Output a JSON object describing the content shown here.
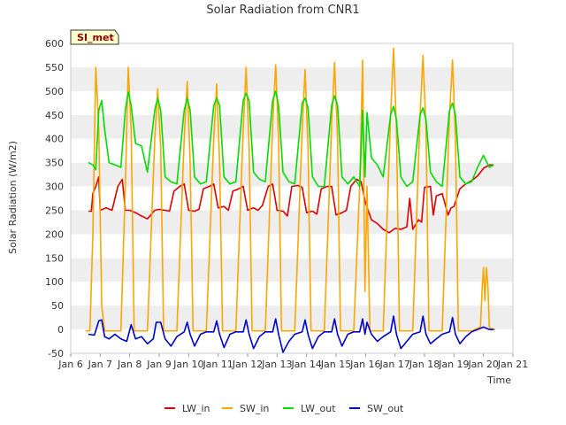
{
  "chart_data": {
    "type": "line",
    "title": "Solar Radiation from CNR1",
    "xlabel": "Time",
    "ylabel": "Solar Radiation (W/m2)",
    "station_badge": "SI_met",
    "xlim": [
      6,
      21
    ],
    "ylim": [
      -50,
      600
    ],
    "x_ticks": [
      6,
      7,
      8,
      9,
      10,
      11,
      12,
      13,
      14,
      15,
      16,
      17,
      18,
      19,
      20,
      21
    ],
    "x_tick_labels": [
      "Jan 6",
      "Jan 7",
      "Jan 8",
      "Jan 9",
      "Jan 10",
      "Jan 11",
      "Jan 12",
      "Jan 13",
      "Jan 14",
      "Jan 15",
      "Jan 16",
      "Jan 17",
      "Jan 18",
      "Jan 19",
      "Jan 20",
      "Jan 21"
    ],
    "y_ticks": [
      -50,
      0,
      50,
      100,
      150,
      200,
      250,
      300,
      350,
      400,
      450,
      500,
      550,
      600
    ],
    "grid": "horizontal bands",
    "legend_position": "bottom",
    "series": [
      {
        "name": "LW_in",
        "color": "#dd0000",
        "x": [
          6.6,
          6.7,
          6.75,
          6.85,
          6.95,
          7.0,
          7.2,
          7.4,
          7.6,
          7.75,
          7.85,
          8.0,
          8.2,
          8.4,
          8.6,
          8.85,
          9.0,
          9.2,
          9.35,
          9.5,
          9.7,
          9.85,
          10.0,
          10.2,
          10.35,
          10.5,
          10.7,
          10.85,
          11.0,
          11.2,
          11.35,
          11.5,
          11.7,
          11.85,
          12.0,
          12.2,
          12.35,
          12.5,
          12.7,
          12.85,
          13.0,
          13.2,
          13.35,
          13.5,
          13.7,
          13.85,
          14.0,
          14.2,
          14.35,
          14.5,
          14.7,
          14.85,
          15.0,
          15.2,
          15.35,
          15.5,
          15.7,
          15.85,
          16.0,
          16.2,
          16.4,
          16.6,
          16.8,
          17.0,
          17.2,
          17.4,
          17.5,
          17.6,
          17.8,
          17.9,
          18.0,
          18.2,
          18.3,
          18.4,
          18.6,
          18.8,
          18.9,
          19.0,
          19.2,
          19.4,
          19.6,
          19.8,
          20.0,
          20.2,
          20.35
        ],
        "y": [
          248,
          248,
          285,
          300,
          320,
          250,
          255,
          250,
          300,
          315,
          250,
          250,
          245,
          238,
          232,
          250,
          252,
          250,
          248,
          290,
          300,
          305,
          250,
          248,
          252,
          295,
          300,
          305,
          255,
          258,
          250,
          290,
          295,
          300,
          250,
          255,
          250,
          260,
          300,
          305,
          250,
          248,
          238,
          300,
          302,
          298,
          245,
          248,
          242,
          295,
          300,
          300,
          240,
          245,
          250,
          300,
          315,
          310,
          265,
          230,
          222,
          210,
          203,
          212,
          210,
          215,
          275,
          210,
          230,
          225,
          298,
          300,
          240,
          280,
          285,
          240,
          255,
          258,
          295,
          305,
          312,
          322,
          338,
          345,
          345
        ]
      },
      {
        "name": "SW_in",
        "color": "#ffa500",
        "x": [
          6.5,
          6.65,
          6.75,
          6.85,
          6.95,
          7.05,
          7.15,
          7.5,
          7.7,
          7.85,
          7.95,
          8.05,
          8.15,
          8.6,
          8.85,
          8.95,
          9.05,
          9.15,
          9.6,
          9.85,
          9.95,
          10.05,
          10.15,
          10.6,
          10.85,
          10.95,
          11.05,
          11.15,
          11.6,
          11.85,
          11.95,
          12.05,
          12.15,
          12.6,
          12.85,
          12.95,
          13.05,
          13.15,
          13.6,
          13.85,
          13.95,
          14.05,
          14.15,
          14.6,
          14.85,
          14.95,
          15.05,
          15.15,
          15.6,
          15.8,
          15.9,
          15.98,
          16.05,
          16.15,
          16.6,
          16.85,
          16.95,
          17.05,
          17.15,
          17.6,
          17.85,
          17.95,
          18.05,
          18.15,
          18.6,
          18.85,
          18.95,
          19.05,
          19.15,
          19.6,
          19.9,
          19.95,
          20.0,
          20.05,
          20.1,
          20.15,
          20.2,
          20.3,
          20.4
        ],
        "y": [
          -3,
          -3,
          200,
          550,
          420,
          50,
          -3,
          -3,
          -3,
          300,
          550,
          420,
          -3,
          -3,
          400,
          505,
          380,
          -3,
          -3,
          400,
          520,
          350,
          -3,
          -3,
          400,
          515,
          350,
          -3,
          -3,
          420,
          550,
          380,
          -3,
          -3,
          430,
          555,
          400,
          -3,
          -3,
          420,
          545,
          380,
          -3,
          -3,
          430,
          560,
          400,
          -3,
          -3,
          300,
          565,
          80,
          300,
          -3,
          -3,
          450,
          590,
          420,
          -3,
          -3,
          450,
          575,
          420,
          -3,
          -3,
          450,
          565,
          400,
          -3,
          -3,
          5,
          80,
          130,
          60,
          130,
          90,
          5,
          0,
          0
        ]
      },
      {
        "name": "LW_out",
        "color": "#00dd00",
        "x": [
          6.6,
          6.75,
          6.85,
          6.95,
          7.05,
          7.15,
          7.3,
          7.5,
          7.7,
          7.85,
          7.95,
          8.05,
          8.2,
          8.4,
          8.6,
          8.85,
          8.95,
          9.05,
          9.2,
          9.4,
          9.6,
          9.85,
          9.95,
          10.05,
          10.2,
          10.4,
          10.6,
          10.85,
          10.95,
          11.05,
          11.2,
          11.4,
          11.6,
          11.85,
          11.95,
          12.05,
          12.2,
          12.4,
          12.6,
          12.85,
          12.95,
          13.05,
          13.2,
          13.4,
          13.6,
          13.85,
          13.95,
          14.05,
          14.2,
          14.4,
          14.6,
          14.85,
          14.95,
          15.05,
          15.2,
          15.4,
          15.6,
          15.8,
          15.9,
          15.98,
          16.05,
          16.2,
          16.4,
          16.6,
          16.85,
          16.95,
          17.05,
          17.2,
          17.4,
          17.6,
          17.85,
          17.95,
          18.05,
          18.2,
          18.4,
          18.6,
          18.85,
          18.95,
          19.05,
          19.2,
          19.4,
          19.6,
          19.8,
          20.0,
          20.2,
          20.35
        ],
        "y": [
          350,
          345,
          335,
          460,
          480,
          420,
          350,
          345,
          340,
          460,
          498,
          470,
          390,
          385,
          330,
          460,
          485,
          460,
          320,
          310,
          305,
          460,
          485,
          460,
          320,
          305,
          310,
          470,
          485,
          470,
          320,
          305,
          310,
          480,
          495,
          480,
          330,
          315,
          310,
          480,
          500,
          470,
          330,
          310,
          305,
          475,
          485,
          465,
          320,
          300,
          300,
          470,
          490,
          470,
          320,
          305,
          320,
          300,
          460,
          320,
          455,
          360,
          345,
          320,
          450,
          468,
          440,
          320,
          300,
          310,
          450,
          465,
          440,
          330,
          310,
          300,
          460,
          475,
          450,
          320,
          305,
          310,
          340,
          365,
          340,
          345
        ]
      },
      {
        "name": "SW_out",
        "color": "#0000cc",
        "x": [
          6.6,
          6.8,
          6.95,
          7.05,
          7.15,
          7.3,
          7.5,
          7.7,
          7.9,
          8.05,
          8.2,
          8.4,
          8.6,
          8.8,
          8.9,
          9.05,
          9.2,
          9.4,
          9.6,
          9.85,
          9.95,
          10.05,
          10.2,
          10.4,
          10.6,
          10.85,
          10.95,
          11.05,
          11.2,
          11.4,
          11.6,
          11.85,
          11.95,
          12.05,
          12.2,
          12.4,
          12.6,
          12.85,
          12.95,
          13.05,
          13.2,
          13.4,
          13.6,
          13.85,
          13.95,
          14.05,
          14.2,
          14.4,
          14.6,
          14.85,
          14.95,
          15.05,
          15.2,
          15.4,
          15.6,
          15.8,
          15.9,
          15.98,
          16.05,
          16.2,
          16.4,
          16.6,
          16.85,
          16.95,
          17.05,
          17.2,
          17.4,
          17.6,
          17.85,
          17.95,
          18.05,
          18.2,
          18.4,
          18.6,
          18.85,
          18.95,
          19.05,
          19.2,
          19.4,
          19.6,
          19.8,
          20.0,
          20.2,
          20.35
        ],
        "y": [
          -10,
          -12,
          18,
          20,
          -15,
          -20,
          -10,
          -20,
          -25,
          10,
          -20,
          -15,
          -30,
          -20,
          15,
          15,
          -20,
          -35,
          -15,
          -5,
          15,
          -10,
          -35,
          -10,
          -5,
          -5,
          18,
          -10,
          -38,
          -10,
          -5,
          -5,
          20,
          -10,
          -40,
          -15,
          -5,
          -5,
          22,
          -10,
          -48,
          -25,
          -10,
          -5,
          20,
          -10,
          -40,
          -15,
          -5,
          -5,
          22,
          -10,
          -35,
          -10,
          -5,
          -5,
          22,
          -10,
          15,
          -10,
          -25,
          -15,
          -5,
          28,
          -10,
          -40,
          -25,
          -10,
          -5,
          28,
          -10,
          -30,
          -20,
          -10,
          -5,
          25,
          -10,
          -30,
          -15,
          -5,
          0,
          5,
          0,
          0
        ]
      }
    ]
  }
}
